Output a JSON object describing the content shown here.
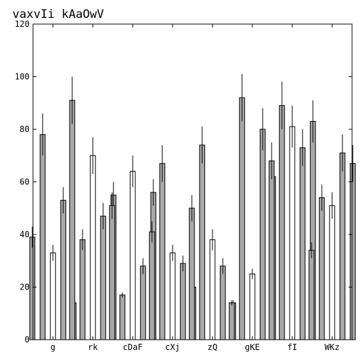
{
  "chart_data": {
    "type": "bar",
    "title": "vaxvIi kAaOwV",
    "xlabel": "",
    "ylabel": "",
    "ylim": [
      0,
      120
    ],
    "yticks": [
      0,
      20,
      40,
      60,
      80,
      100,
      120
    ],
    "grid": false,
    "legend": "none",
    "categories": [
      "g",
      "rk",
      "cDaF",
      "cXj",
      "zQ",
      "gKE",
      "fI",
      "WKz"
    ],
    "series": [
      {
        "color": "#a8a8a8",
        "values": [
          39,
          91,
          51,
          41,
          50,
          14,
          68,
          34
        ],
        "errors": [
          4,
          9,
          5,
          4,
          5,
          1,
          7,
          3
        ]
      },
      {
        "color": "#a8a8a8",
        "values": [
          78,
          38,
          17,
          67,
          74,
          92,
          89,
          54
        ],
        "errors": [
          8,
          4,
          1,
          7,
          7,
          9,
          9,
          5
        ]
      },
      {
        "color": "#ffffff",
        "values": [
          33,
          70,
          64,
          33,
          38,
          25,
          81,
          51
        ],
        "errors": [
          3,
          7,
          6,
          3,
          4,
          2,
          8,
          5
        ]
      },
      {
        "color": "#a8a8a8",
        "values": [
          53,
          47,
          28,
          29,
          28,
          80,
          73,
          71
        ],
        "errors": [
          5,
          5,
          3,
          3,
          3,
          8,
          7,
          7
        ]
      },
      {
        "color": "#a8a8a8",
        "values": [
          14,
          55,
          56,
          20,
          14,
          62,
          83,
          67
        ],
        "errors": [
          1,
          5,
          5,
          2,
          1,
          6,
          8,
          7
        ]
      }
    ]
  }
}
